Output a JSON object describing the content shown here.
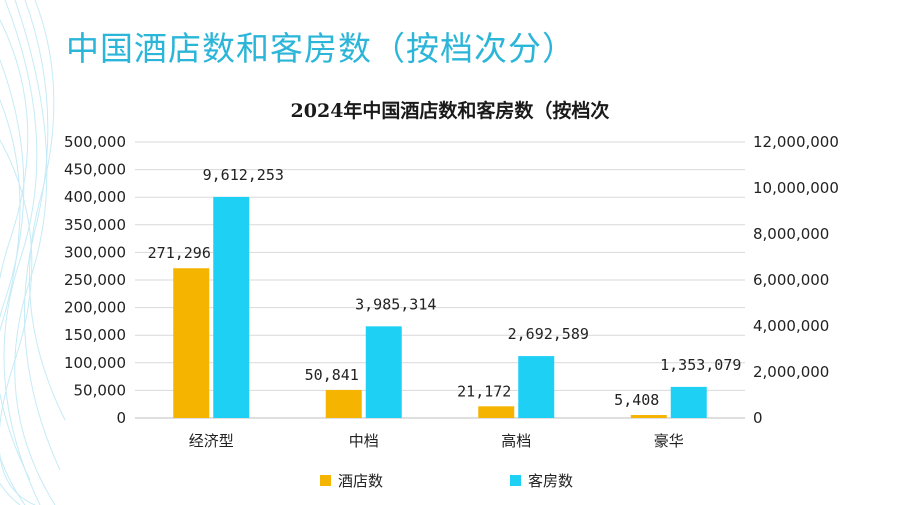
{
  "slide_title": "中国酒店数和客房数（按档次分）",
  "colors": {
    "hotels": "#f4b400",
    "rooms": "#1fd0f5",
    "title": "#2bb5d8",
    "grid": "#d9d9d9"
  },
  "chart_data": {
    "type": "bar",
    "title": "2024年中国酒店数和客房数（按档次",
    "categories": [
      "经济型",
      "中档",
      "高档",
      "豪华"
    ],
    "series": [
      {
        "name": "酒店数",
        "axis": "left",
        "values": [
          271296,
          50841,
          21172,
          5408
        ],
        "labels": [
          "271,296",
          "50,841",
          "21,172",
          "5,408"
        ]
      },
      {
        "name": "客房数",
        "axis": "right",
        "values": [
          9612253,
          3985314,
          2692589,
          1353079
        ],
        "labels": [
          "9,612,253",
          "3,985,314",
          "2,692,589",
          "1,353,079"
        ]
      }
    ],
    "ylim_left": [
      0,
      500000
    ],
    "yticks_left": [
      "0",
      "50,000",
      "100,000",
      "150,000",
      "200,000",
      "250,000",
      "300,000",
      "350,000",
      "400,000",
      "450,000",
      "500,000"
    ],
    "ylim_right": [
      0,
      12000000
    ],
    "yticks_right": [
      "0",
      "2,000,000",
      "4,000,000",
      "6,000,000",
      "8,000,000",
      "10,000,000",
      "12,000,000"
    ],
    "grid": true,
    "legend_position": "bottom"
  }
}
